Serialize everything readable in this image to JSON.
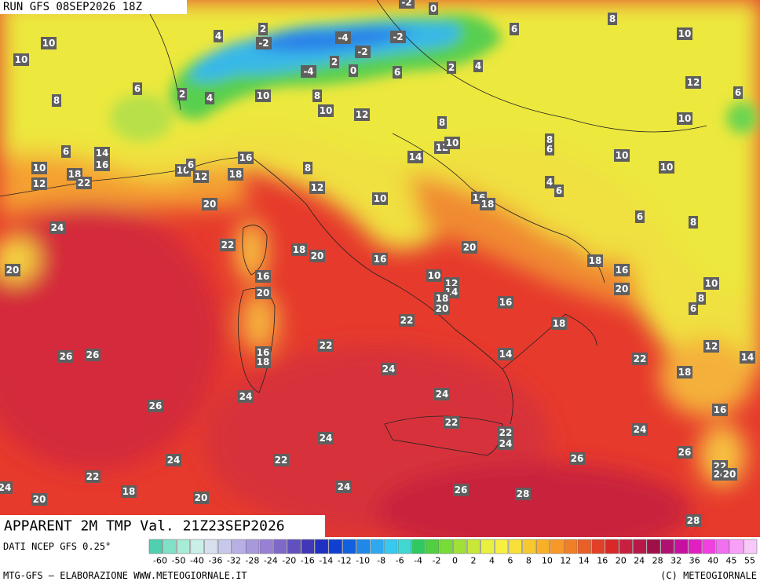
{
  "header": {
    "run": "RUN GFS 08SEP2026 18Z"
  },
  "map": {
    "title": "APPARENT 2M TMP Val. 21Z23SEP2026",
    "labels": [
      "-2",
      "0",
      "2",
      "-2",
      "4",
      "-4",
      "-2",
      "6",
      "8",
      "10",
      "10",
      "10",
      "2",
      "-2",
      "-4",
      "0",
      "6",
      "2",
      "4",
      "12",
      "6",
      "2",
      "4",
      "10",
      "8",
      "6",
      "8",
      "10",
      "12",
      "10",
      "8",
      "12",
      "10",
      "8",
      "6",
      "6",
      "14",
      "16",
      "16",
      "14",
      "10",
      "10",
      "10",
      "10",
      "6",
      "12",
      "18",
      "18",
      "8",
      "12",
      "22",
      "4",
      "6",
      "12",
      "10",
      "16",
      "18",
      "20",
      "6",
      "8",
      "24",
      "22",
      "18",
      "20",
      "20",
      "16",
      "18",
      "20",
      "16",
      "10",
      "12",
      "14",
      "16",
      "20",
      "10",
      "20",
      "18",
      "20",
      "16",
      "8",
      "6",
      "22",
      "18",
      "12",
      "22",
      "16",
      "18",
      "14",
      "14",
      "26",
      "26",
      "24",
      "22",
      "18",
      "24",
      "24",
      "26",
      "16",
      "22",
      "22",
      "24",
      "24",
      "24",
      "26",
      "26",
      "24",
      "22",
      "22",
      "24",
      "20",
      "22",
      "24",
      "18",
      "24",
      "26",
      "20",
      "28",
      "20",
      "28"
    ]
  },
  "legend": {
    "source": "DATI NCEP GFS 0.25°",
    "ticks": [
      "-60",
      "-50",
      "-40",
      "-36",
      "-32",
      "-28",
      "-24",
      "-20",
      "-16",
      "-14",
      "-12",
      "-10",
      "-8",
      "-6",
      "-4",
      "-2",
      "0",
      "2",
      "4",
      "6",
      "8",
      "10",
      "12",
      "14",
      "16",
      "20",
      "24",
      "28",
      "32",
      "36",
      "40",
      "45",
      "55"
    ]
  },
  "footer": {
    "left": "MTG-GFS — ELABORAZIONE WWW.METEOGIORNALE.IT",
    "right": "(C) METEOGIORNALE"
  }
}
